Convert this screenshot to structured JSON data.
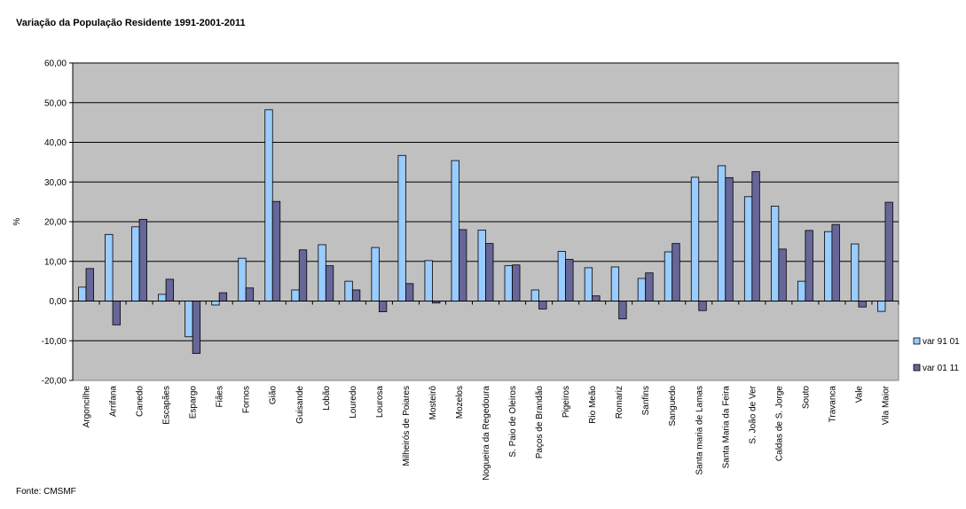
{
  "title": "Variação da População Residente 1991-2001-2011",
  "source": "Fonte: CMSMF",
  "chart_data": {
    "type": "bar",
    "title": "Variação da População Residente 1991-2001-2011",
    "ylabel": "%",
    "xlabel": "",
    "ylim": [
      -20,
      60
    ],
    "ytick_step": 10,
    "ytick_labels": [
      "-20,00",
      "-10,00",
      "0,00",
      "10,00",
      "20,00",
      "30,00",
      "40,00",
      "50,00",
      "60,00"
    ],
    "grid": true,
    "legend_position": "right",
    "plot_background": "#c0c0c0",
    "categories": [
      "Argoncilhe",
      "Arrifana",
      "Canedo",
      "Escapães",
      "Espargo",
      "Fiães",
      "Fornos",
      "Gião",
      "Guisande",
      "Lobão",
      "Louredo",
      "Lourosa",
      "Milheirós de Poiares",
      "Mosteirô",
      "Mozelos",
      "Nogueira da Regedoura",
      "S. Paio de Oleiros",
      "Paços de Brandão",
      "Pigeiros",
      "Rio Meão",
      "Romariz",
      "Sanfins",
      "Sanguedo",
      "Santa maria de Lamas",
      "Santa Maria da Feira",
      "S. João de Ver",
      "Caldas de S. Jorge",
      "Souto",
      "Travanca",
      "Vale",
      "Vila Maior"
    ],
    "series": [
      {
        "name": "var 91 01",
        "color": "#99ccff",
        "values": [
          3.5,
          16.8,
          18.7,
          1.7,
          -9.0,
          -1.0,
          10.8,
          48.2,
          2.8,
          14.2,
          5.0,
          13.5,
          36.7,
          10.2,
          35.4,
          17.9,
          8.9,
          2.8,
          12.5,
          8.4,
          8.6,
          5.7,
          12.4,
          31.2,
          34.1,
          26.3,
          23.9,
          5.0,
          17.5,
          14.4,
          -2.6
        ]
      },
      {
        "name": "var 01 11",
        "color": "#666699",
        "values": [
          8.2,
          -6.0,
          20.6,
          5.5,
          -13.2,
          2.1,
          3.3,
          25.1,
          12.9,
          8.9,
          2.8,
          -2.7,
          4.4,
          -0.5,
          18.0,
          14.5,
          9.1,
          -2.0,
          10.5,
          1.3,
          -4.5,
          7.1,
          14.5,
          -2.4,
          31.1,
          32.6,
          13.1,
          17.8,
          19.3,
          -1.5,
          24.9
        ]
      }
    ]
  }
}
